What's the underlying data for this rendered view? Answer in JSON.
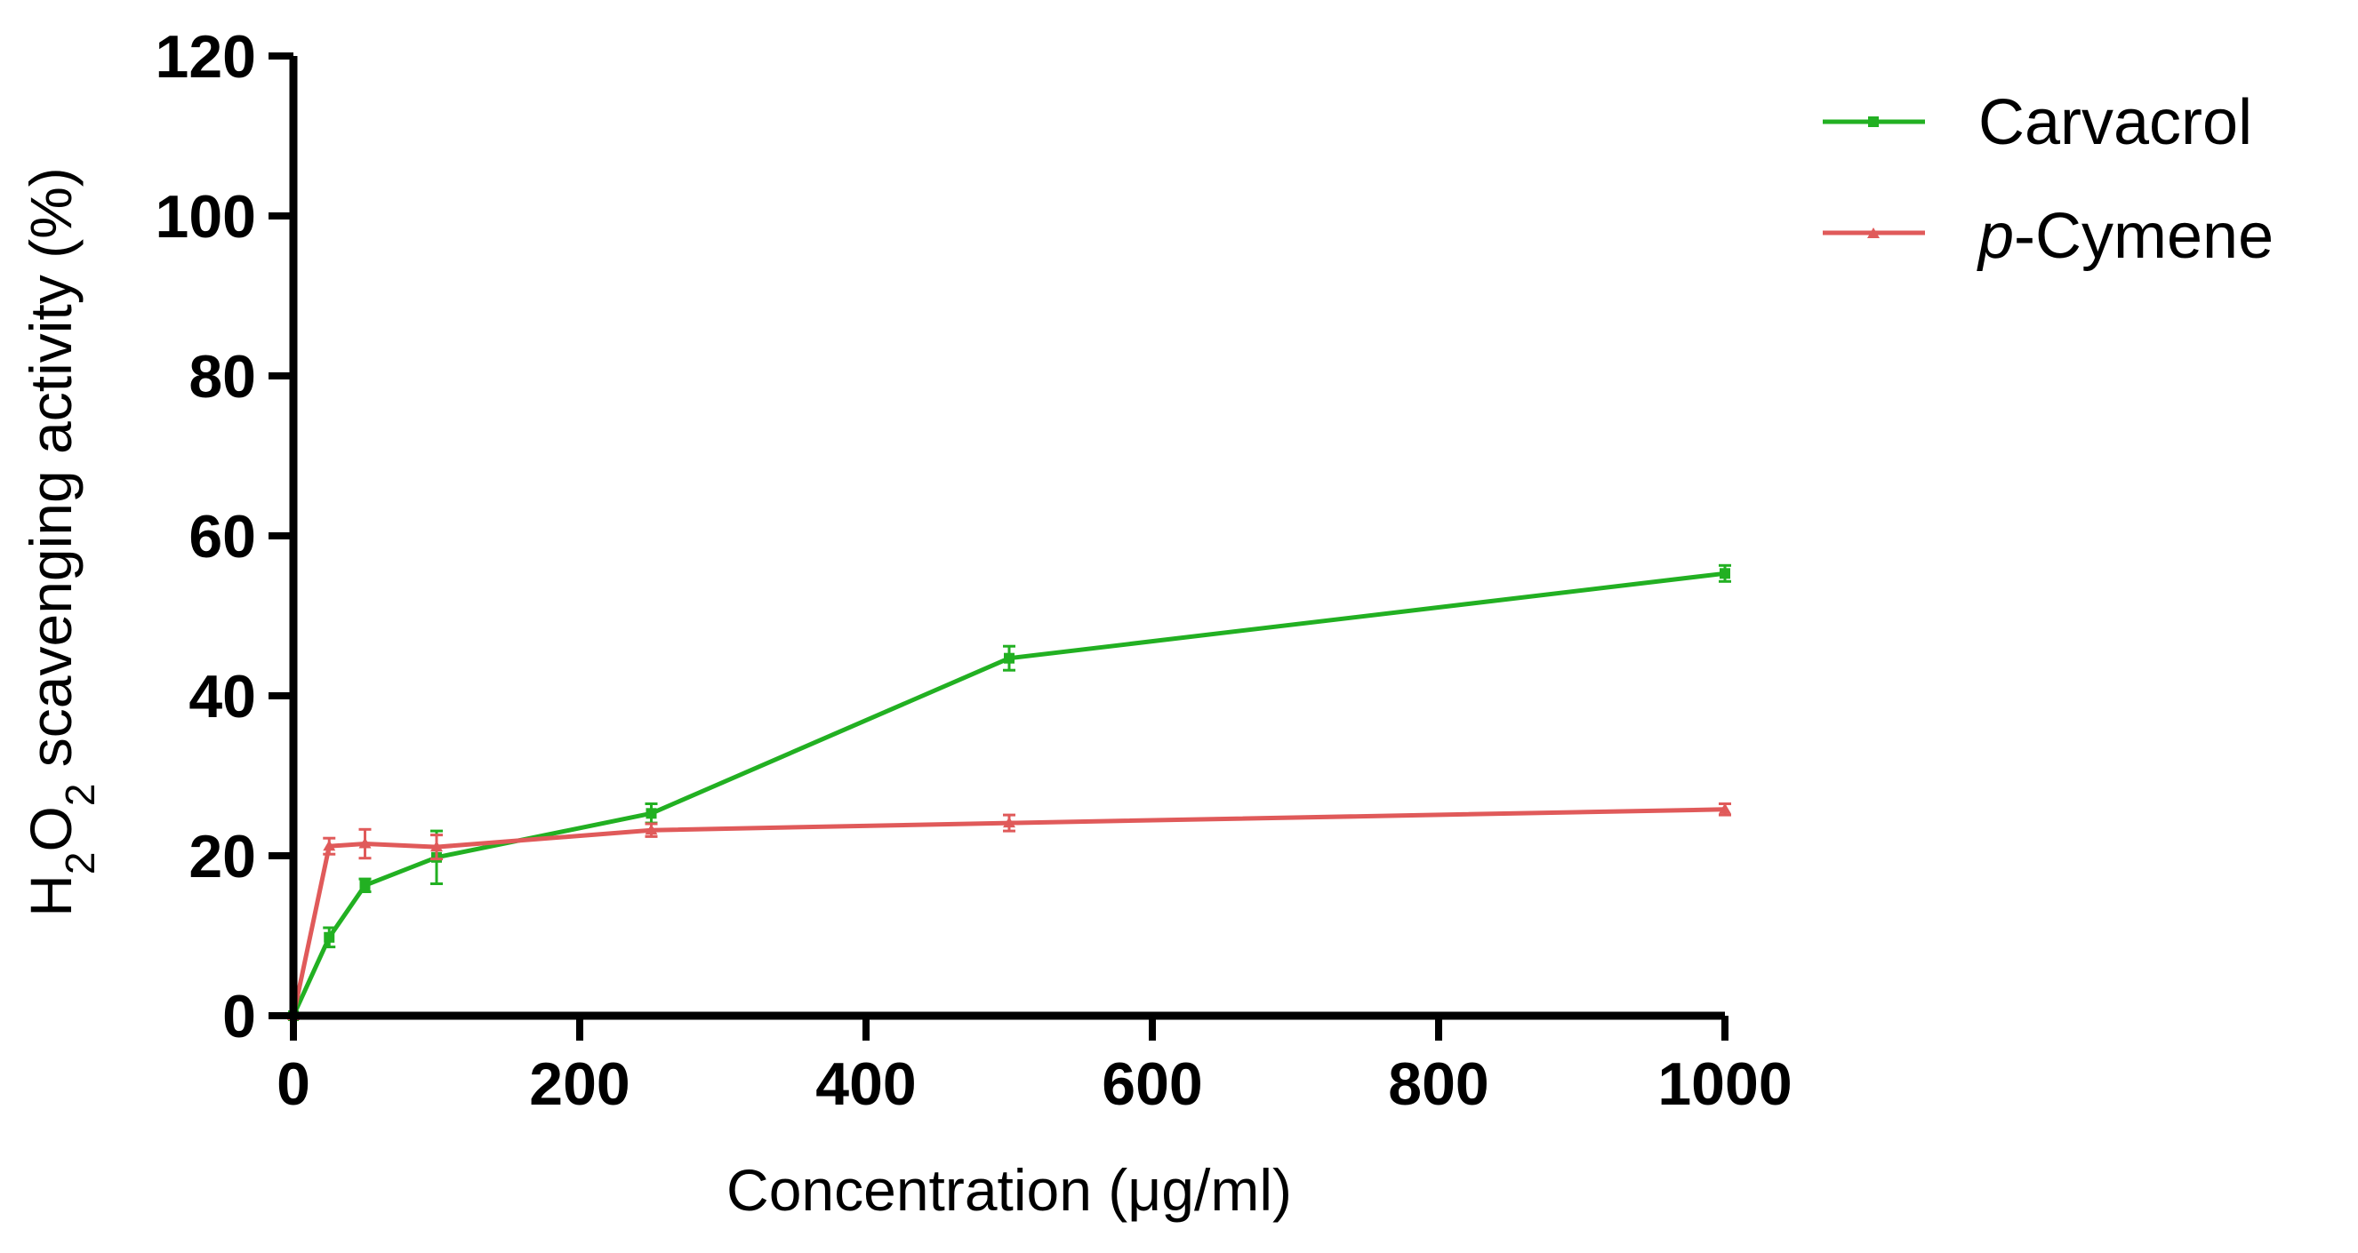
{
  "chart_data": {
    "type": "line",
    "title": "",
    "xlabel": "Concentration (μg/ml)",
    "ylabel_parts": {
      "h": "H",
      "sub2a": "2",
      "o": "O",
      "sub2b": "2",
      "rest": " scavenging activity (%)"
    },
    "xlim": [
      0,
      1000
    ],
    "ylim": [
      0,
      120
    ],
    "xticks": [
      0,
      200,
      400,
      600,
      800,
      1000
    ],
    "yticks": [
      0,
      20,
      40,
      60,
      80,
      100,
      120
    ],
    "xtick_labels": [
      "0",
      "200",
      "400",
      "600",
      "800",
      "1000"
    ],
    "ytick_labels": [
      "0",
      "20",
      "40",
      "60",
      "80",
      "100",
      "120"
    ],
    "grid": false,
    "legend_position": "top-right",
    "series": [
      {
        "name": "Carvacrol",
        "color": "#22b022",
        "marker": "square",
        "x": [
          0,
          25,
          50,
          100,
          250,
          500,
          1000
        ],
        "y": [
          0,
          9.8,
          16.3,
          19.8,
          25.3,
          44.7,
          55.3
        ],
        "err": [
          0,
          1.2,
          0.8,
          3.3,
          1.2,
          1.5,
          1.0
        ]
      },
      {
        "name": "Cymene",
        "italic_prefix": "p",
        "color": "#e05a5a",
        "marker": "triangle",
        "x": [
          0,
          25,
          50,
          100,
          250,
          500,
          1000
        ],
        "y": [
          0,
          21.2,
          21.5,
          21.1,
          23.2,
          24.1,
          25.8
        ],
        "err": [
          0,
          1.0,
          1.8,
          1.5,
          0.8,
          1.0,
          0.7
        ]
      }
    ]
  }
}
